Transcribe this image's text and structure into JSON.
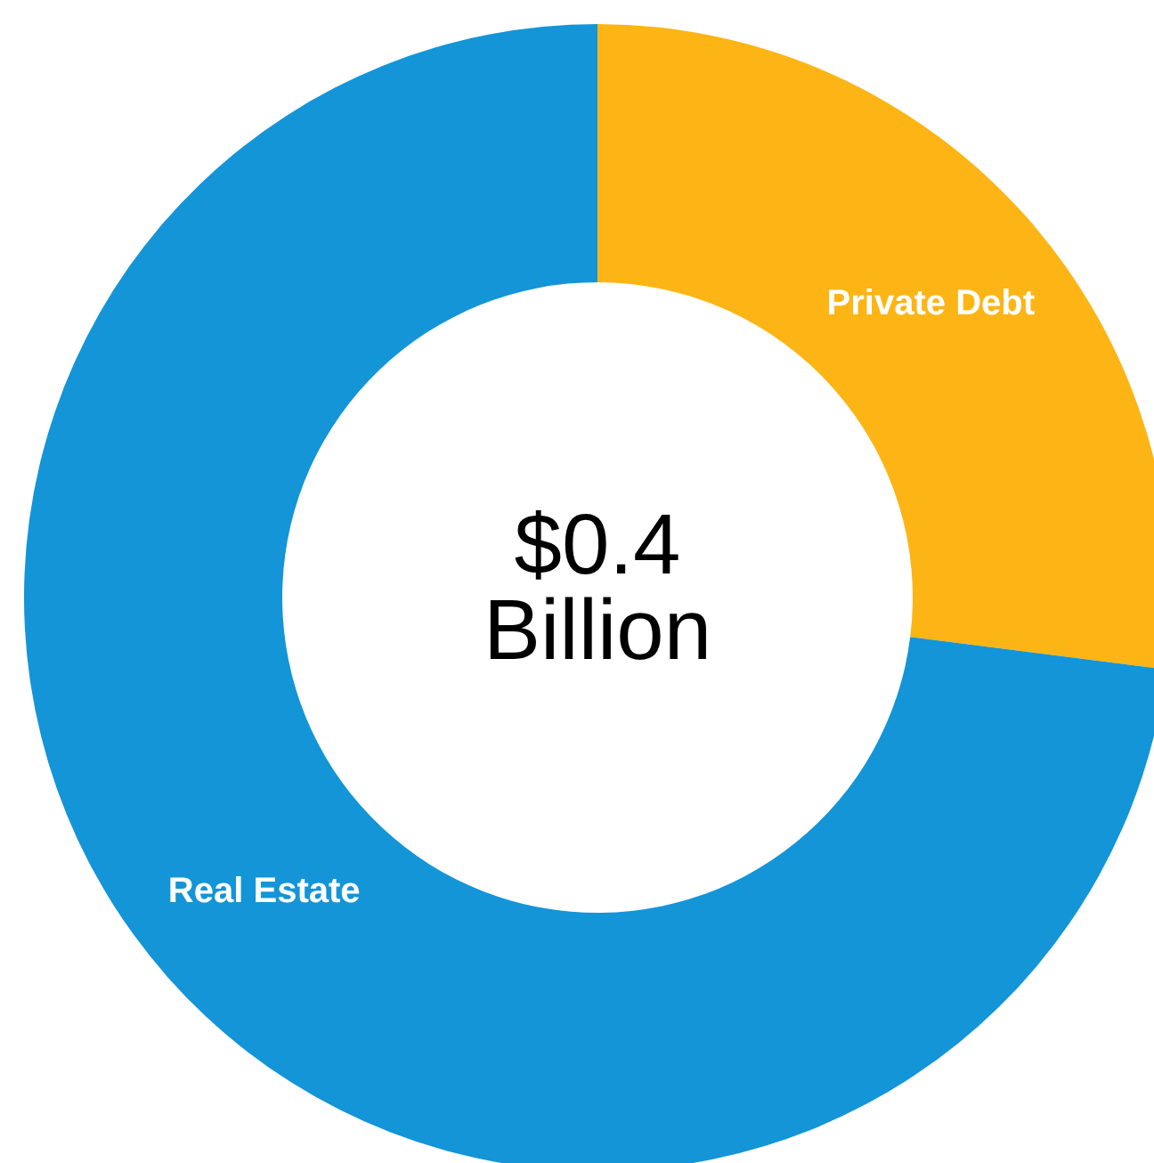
{
  "chart_data": {
    "type": "donut",
    "categories": [
      "Private Debt",
      "Real Estate"
    ],
    "values": [
      27,
      73
    ],
    "colors": [
      "#fdb515",
      "#1395d8"
    ],
    "annotations": [
      "$0.4",
      "Billion"
    ]
  }
}
